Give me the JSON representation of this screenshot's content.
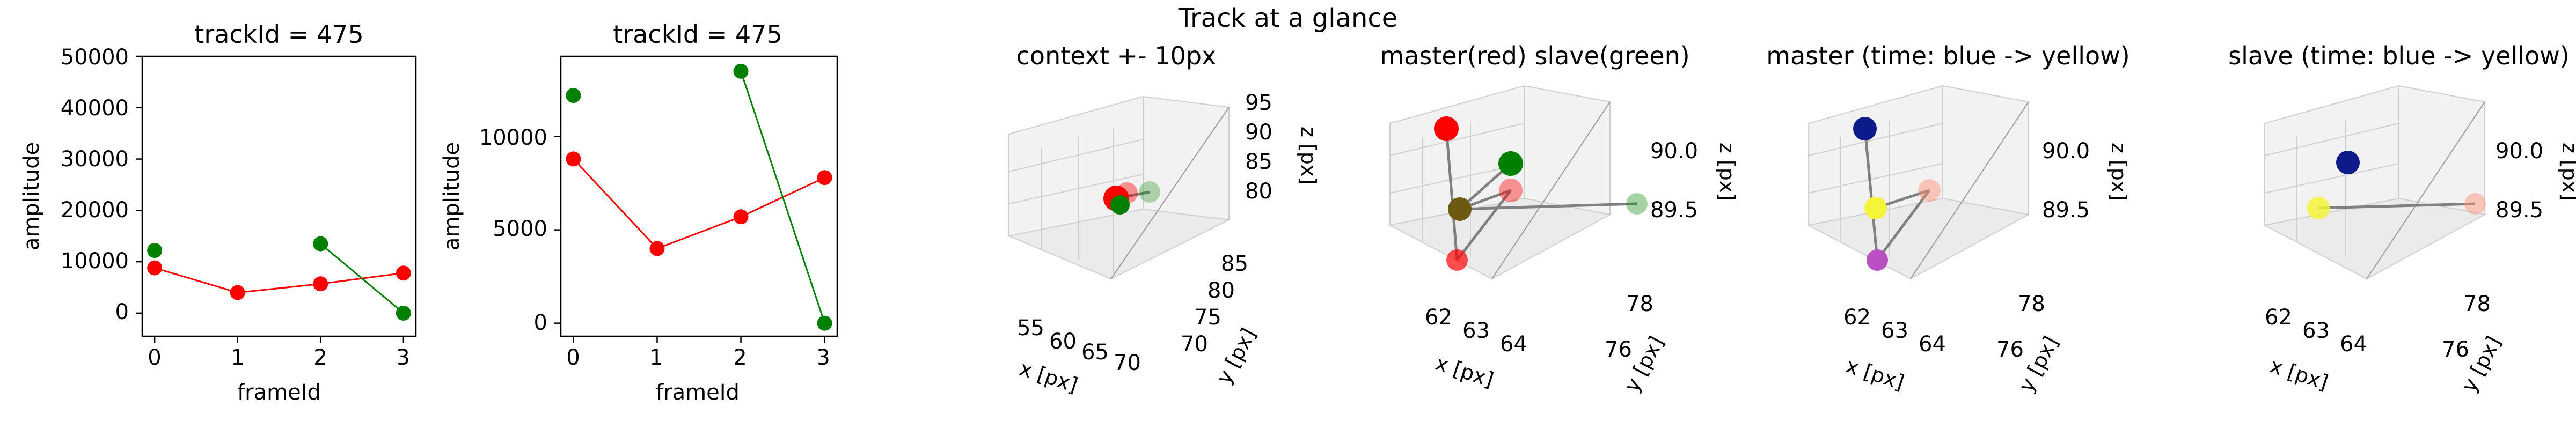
{
  "figure": {
    "suptitle": "Track at a glance"
  },
  "colors": {
    "master": "#ff0000",
    "slave": "#008000",
    "pane": "#f2f2f2",
    "grid": "#cfcfcf",
    "link": "#808080"
  },
  "chart_data": [
    {
      "type": "line",
      "title": "trackId = 475",
      "xlabel": "frameId",
      "ylabel": "amplitude",
      "xlim": [
        -0.15,
        3.15
      ],
      "ylim": [
        -4500,
        50000
      ],
      "x_ticks": [
        "0",
        "1",
        "2",
        "3"
      ],
      "y_ticks": [
        "0",
        "10000",
        "20000",
        "30000",
        "40000",
        "50000"
      ],
      "y_tick_values": [
        0,
        10000,
        20000,
        30000,
        40000,
        50000
      ],
      "series": [
        {
          "color": "#ff0000",
          "x": [
            0,
            1,
            2,
            3
          ],
          "y": [
            8800,
            4000,
            5700,
            7800
          ]
        },
        {
          "color": "#008000",
          "x": [
            0
          ],
          "y": [
            12200
          ]
        },
        {
          "color": "#008000",
          "x": [
            2,
            3
          ],
          "y": [
            13500,
            0
          ]
        }
      ]
    },
    {
      "type": "line",
      "title": "trackId = 475",
      "xlabel": "frameId",
      "ylabel": "amplitude",
      "xlim": [
        -0.15,
        3.15
      ],
      "ylim": [
        -700,
        14300
      ],
      "x_ticks": [
        "0",
        "1",
        "2",
        "3"
      ],
      "y_ticks": [
        "0",
        "5000",
        "10000"
      ],
      "y_tick_values": [
        0,
        5000,
        10000
      ],
      "series": [
        {
          "color": "#ff0000",
          "x": [
            0,
            1,
            2,
            3
          ],
          "y": [
            8800,
            4000,
            5700,
            7800
          ]
        },
        {
          "color": "#008000",
          "x": [
            0
          ],
          "y": [
            12200
          ]
        },
        {
          "color": "#008000",
          "x": [
            2,
            3
          ],
          "y": [
            13500,
            0
          ]
        }
      ]
    },
    {
      "type": "scatter",
      "projection": "3d",
      "title": "context +- 10px",
      "xlabel": "x [px]",
      "ylabel": "y [px]",
      "zlabel": "z [px]",
      "x_ticks": [
        "55",
        "60",
        "65",
        "70"
      ],
      "y_ticks": [
        "70",
        "75",
        "80",
        "85"
      ],
      "z_ticks": [
        "80",
        "85",
        "90",
        "95"
      ]
    },
    {
      "type": "scatter",
      "projection": "3d",
      "title": "master(red) slave(green)",
      "xlabel": "x [px]",
      "ylabel": "y [px]",
      "zlabel": "z [px]",
      "x_ticks": [
        "62",
        "63",
        "64"
      ],
      "y_ticks": [
        "76",
        "78"
      ],
      "z_ticks": [
        "89.5",
        "90.0"
      ]
    },
    {
      "type": "scatter",
      "projection": "3d",
      "title": "master (time: blue -> yellow)",
      "xlabel": "x [px]",
      "ylabel": "y [px]",
      "zlabel": "z [px]",
      "x_ticks": [
        "62",
        "63",
        "64"
      ],
      "y_ticks": [
        "76",
        "78"
      ],
      "z_ticks": [
        "89.5",
        "90.0"
      ]
    },
    {
      "type": "scatter",
      "projection": "3d",
      "title": "slave (time: blue -> yellow)",
      "xlabel": "x [px]",
      "ylabel": "y [px]",
      "zlabel": "z [px]",
      "x_ticks": [
        "62",
        "63",
        "64"
      ],
      "y_ticks": [
        "76",
        "78"
      ],
      "z_ticks": [
        "89.5",
        "90.0"
      ]
    }
  ]
}
